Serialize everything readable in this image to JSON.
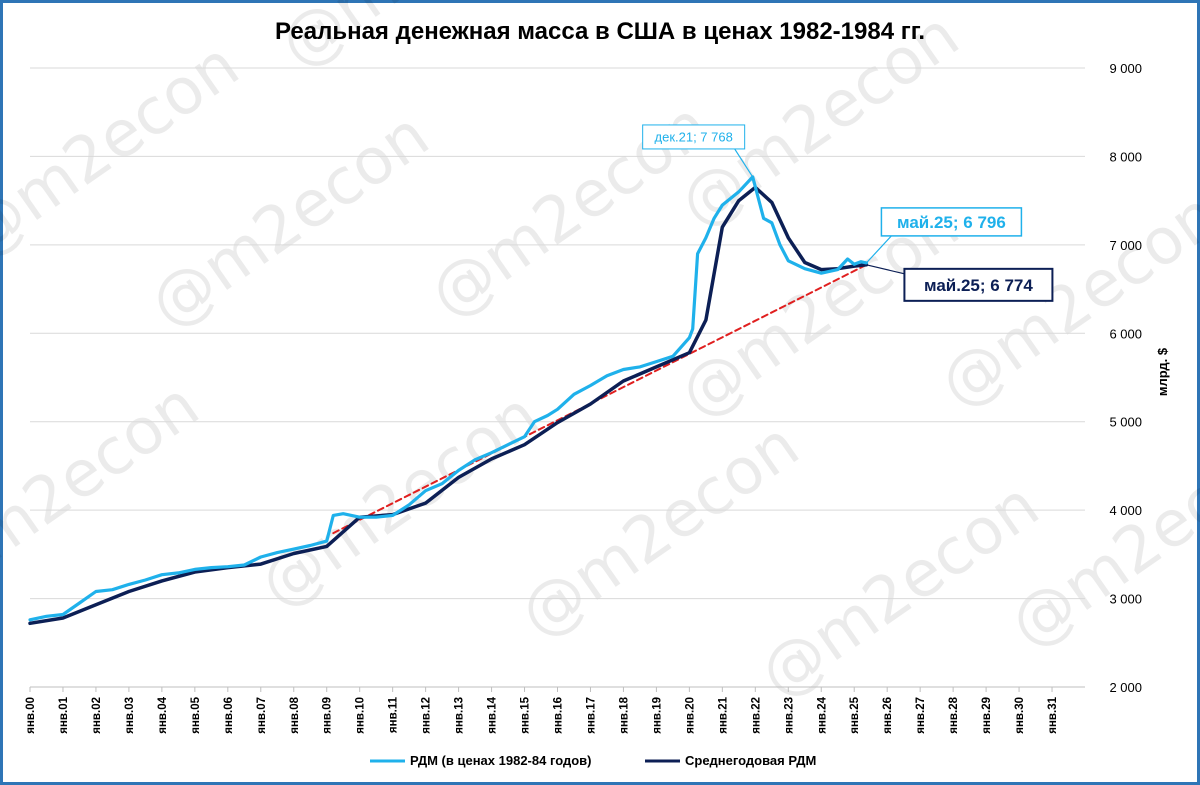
{
  "chart_data": {
    "type": "line",
    "title": "Реальная денежная масса в США в ценах 1982-1984 гг.",
    "ylabel": "млрд. $",
    "ylim": [
      2000,
      9000
    ],
    "yticks": [
      2000,
      3000,
      4000,
      5000,
      6000,
      7000,
      8000,
      9000
    ],
    "ytick_labels": [
      "2 000",
      "3 000",
      "4 000",
      "5 000",
      "6 000",
      "7 000",
      "8 000",
      "9 000"
    ],
    "y_axis_side": "right",
    "xlim": [
      2000,
      2032
    ],
    "x_ticks": [
      2000,
      2001,
      2002,
      2003,
      2004,
      2005,
      2006,
      2007,
      2008,
      2009,
      2010,
      2011,
      2012,
      2013,
      2014,
      2015,
      2016,
      2017,
      2018,
      2019,
      2020,
      2021,
      2022,
      2023,
      2024,
      2025,
      2026,
      2027,
      2028,
      2029,
      2030,
      2031
    ],
    "x_tick_labels": [
      "янв.00",
      "янв.01",
      "янв.02",
      "янв.03",
      "янв.04",
      "янв.05",
      "янв.06",
      "янв.07",
      "янв.08",
      "янв.09",
      "янв.10",
      "янв.11",
      "янв.12",
      "янв.13",
      "янв.14",
      "янв.15",
      "янв.16",
      "янв.17",
      "янв.18",
      "янв.19",
      "янв.20",
      "янв.21",
      "янв.22",
      "янв.23",
      "янв.24",
      "янв.25",
      "янв.26",
      "янв.27",
      "янв.28",
      "янв.29",
      "янв.30",
      "янв.31"
    ],
    "grid": "horizontal",
    "legend_position": "bottom",
    "series": [
      {
        "name": "РДМ (в ценах 1982-84 годов)",
        "color": "#1fb1eb",
        "points": [
          [
            2000,
            2760
          ],
          [
            2000.5,
            2800
          ],
          [
            2001,
            2820
          ],
          [
            2001.5,
            2950
          ],
          [
            2002,
            3080
          ],
          [
            2002.5,
            3100
          ],
          [
            2003,
            3160
          ],
          [
            2003.5,
            3210
          ],
          [
            2004,
            3270
          ],
          [
            2004.5,
            3290
          ],
          [
            2005,
            3330
          ],
          [
            2005.5,
            3350
          ],
          [
            2006,
            3360
          ],
          [
            2006.5,
            3380
          ],
          [
            2007,
            3470
          ],
          [
            2007.5,
            3520
          ],
          [
            2008,
            3560
          ],
          [
            2008.5,
            3600
          ],
          [
            2009,
            3650
          ],
          [
            2009.2,
            3940
          ],
          [
            2009.5,
            3960
          ],
          [
            2010,
            3920
          ],
          [
            2010.5,
            3920
          ],
          [
            2011,
            3940
          ],
          [
            2011.5,
            4060
          ],
          [
            2012,
            4220
          ],
          [
            2012.5,
            4300
          ],
          [
            2013,
            4450
          ],
          [
            2013.5,
            4570
          ],
          [
            2014,
            4650
          ],
          [
            2014.5,
            4740
          ],
          [
            2015,
            4830
          ],
          [
            2015.3,
            5000
          ],
          [
            2015.7,
            5070
          ],
          [
            2016,
            5140
          ],
          [
            2016.5,
            5310
          ],
          [
            2017,
            5410
          ],
          [
            2017.5,
            5520
          ],
          [
            2018,
            5590
          ],
          [
            2018.5,
            5620
          ],
          [
            2019,
            5680
          ],
          [
            2019.5,
            5740
          ],
          [
            2020,
            5950
          ],
          [
            2020.1,
            6050
          ],
          [
            2020.25,
            6900
          ],
          [
            2020.5,
            7080
          ],
          [
            2020.75,
            7300
          ],
          [
            2021,
            7450
          ],
          [
            2021.5,
            7600
          ],
          [
            2021.92,
            7768
          ],
          [
            2022.25,
            7300
          ],
          [
            2022.5,
            7250
          ],
          [
            2022.75,
            7000
          ],
          [
            2023,
            6820
          ],
          [
            2023.5,
            6730
          ],
          [
            2024,
            6680
          ],
          [
            2024.5,
            6720
          ],
          [
            2024.8,
            6840
          ],
          [
            2025,
            6780
          ],
          [
            2025.2,
            6810
          ],
          [
            2025.37,
            6796
          ]
        ]
      },
      {
        "name": "Среднегодовая РДМ",
        "color": "#0c1f55",
        "points": [
          [
            2000,
            2720
          ],
          [
            2001,
            2780
          ],
          [
            2002,
            2930
          ],
          [
            2003,
            3080
          ],
          [
            2004,
            3200
          ],
          [
            2005,
            3300
          ],
          [
            2006,
            3350
          ],
          [
            2007,
            3390
          ],
          [
            2008,
            3510
          ],
          [
            2009,
            3590
          ],
          [
            2010,
            3920
          ],
          [
            2011,
            3950
          ],
          [
            2012,
            4080
          ],
          [
            2013,
            4370
          ],
          [
            2014,
            4580
          ],
          [
            2015,
            4740
          ],
          [
            2016,
            4990
          ],
          [
            2017,
            5200
          ],
          [
            2018,
            5460
          ],
          [
            2019,
            5620
          ],
          [
            2020,
            5780
          ],
          [
            2020.5,
            6150
          ],
          [
            2021,
            7200
          ],
          [
            2021.5,
            7500
          ],
          [
            2022,
            7650
          ],
          [
            2022.5,
            7480
          ],
          [
            2023,
            7080
          ],
          [
            2023.5,
            6800
          ],
          [
            2024,
            6720
          ],
          [
            2024.5,
            6730
          ],
          [
            2025,
            6760
          ],
          [
            2025.37,
            6774
          ]
        ]
      },
      {
        "name": "",
        "color": "#e01f1f",
        "style": "dashed",
        "points": [
          [
            2009.2,
            3740
          ],
          [
            2025.37,
            6774
          ]
        ]
      }
    ],
    "annotations": [
      {
        "text": "дек.21; 7 768",
        "x": 2021.92,
        "y": 7768,
        "color": "#1fb1eb"
      },
      {
        "text": "май.25; 6 796",
        "x": 2025.37,
        "y": 6796,
        "color": "#1fb1eb"
      },
      {
        "text": "май.25; 6 774",
        "x": 2025.37,
        "y": 6774,
        "color": "#0c1f55"
      }
    ]
  },
  "watermark": "@m2econ"
}
